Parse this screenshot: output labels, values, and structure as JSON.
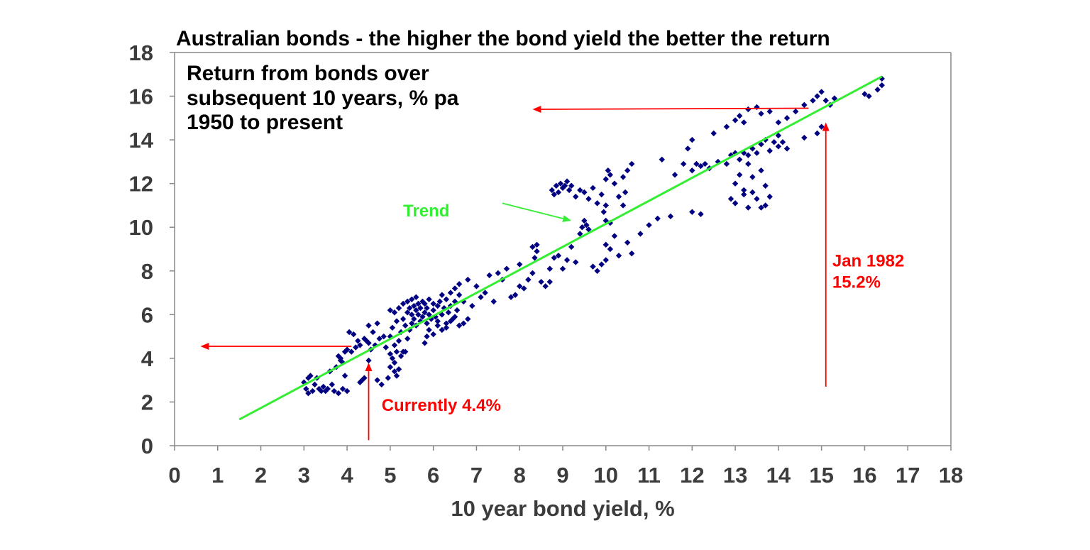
{
  "chart_data": {
    "type": "scatter",
    "title": "Australian bonds - the higher the bond yield the better the return",
    "inner_title": [
      "Return from bonds over",
      "subsequent 10 years, % pa",
      "1950 to present"
    ],
    "xlabel": "10 year bond yield, %",
    "ylabel": "",
    "xlim": [
      0,
      18
    ],
    "ylim": [
      0,
      18
    ],
    "xticks": [
      "0",
      "1",
      "2",
      "3",
      "4",
      "5",
      "6",
      "7",
      "8",
      "9",
      "10",
      "11",
      "12",
      "13",
      "14",
      "15",
      "16",
      "17",
      "18"
    ],
    "yticks": [
      "0",
      "2",
      "4",
      "6",
      "8",
      "10",
      "12",
      "14",
      "16",
      "18"
    ],
    "grid": false,
    "colors": {
      "points": "#000080",
      "trend": "#33ee33",
      "annotation": "#ff0000",
      "axis": "#3c3c3c"
    },
    "trend": {
      "label": "Trend",
      "x": [
        1.5,
        16.4
      ],
      "y": [
        1.2,
        16.9
      ]
    },
    "annotations": [
      {
        "text": [
          "Currently 4.4%"
        ],
        "color": "#ff0000",
        "x": 4.8,
        "y": 1.6
      },
      {
        "text": [
          "Jan 1982",
          "15.2%"
        ],
        "color": "#ff0000",
        "x": 15.25,
        "y": 8.2
      },
      {
        "text": [
          "Trend"
        ],
        "color": "#33ee33",
        "x": 5.3,
        "y": 10.5
      }
    ],
    "arrows": [
      {
        "from": [
          4.5,
          0.25
        ],
        "to": [
          4.5,
          3.8
        ],
        "color": "#ff0000"
      },
      {
        "from": [
          4.1,
          4.55
        ],
        "to": [
          0.6,
          4.55
        ],
        "color": "#ff0000"
      },
      {
        "from": [
          15.1,
          2.7
        ],
        "to": [
          15.1,
          14.8
        ],
        "color": "#ff0000"
      },
      {
        "from": [
          14.7,
          15.45
        ],
        "to": [
          8.3,
          15.4
        ],
        "color": "#ff0000"
      },
      {
        "from": [
          7.6,
          11.1
        ],
        "to": [
          9.2,
          10.3
        ],
        "color": "#33ee33"
      }
    ],
    "series": [
      {
        "points": [
          [
            3.0,
            2.9
          ],
          [
            3.05,
            2.6
          ],
          [
            3.1,
            2.4
          ],
          [
            3.1,
            3.1
          ],
          [
            3.15,
            3.2
          ],
          [
            3.2,
            2.5
          ],
          [
            3.25,
            2.8
          ],
          [
            3.3,
            3.1
          ],
          [
            3.35,
            2.6
          ],
          [
            3.4,
            2.5
          ],
          [
            3.45,
            2.7
          ],
          [
            3.5,
            2.5
          ],
          [
            3.55,
            2.6
          ],
          [
            3.6,
            3.4
          ],
          [
            3.65,
            2.8
          ],
          [
            3.7,
            2.5
          ],
          [
            3.75,
            3.6
          ],
          [
            3.8,
            2.4
          ],
          [
            3.85,
            3.9
          ],
          [
            3.9,
            2.6
          ],
          [
            3.95,
            3.2
          ],
          [
            4.0,
            2.5
          ],
          [
            3.8,
            4.1
          ],
          [
            3.85,
            4.0
          ],
          [
            3.9,
            3.8
          ],
          [
            3.95,
            4.3
          ],
          [
            4.0,
            4.4
          ],
          [
            4.05,
            5.2
          ],
          [
            4.1,
            4.3
          ],
          [
            4.15,
            5.1
          ],
          [
            4.2,
            4.5
          ],
          [
            4.25,
            4.8
          ],
          [
            4.3,
            4.6
          ],
          [
            4.3,
            2.9
          ],
          [
            4.35,
            3.0
          ],
          [
            4.4,
            4.9
          ],
          [
            4.4,
            3.1
          ],
          [
            4.45,
            4.8
          ],
          [
            4.5,
            4.7
          ],
          [
            4.5,
            3.9
          ],
          [
            4.5,
            5.5
          ],
          [
            4.55,
            4.4
          ],
          [
            4.6,
            5.2
          ],
          [
            4.65,
            4.6
          ],
          [
            4.7,
            3.0
          ],
          [
            4.7,
            5.6
          ],
          [
            4.75,
            4.9
          ],
          [
            4.8,
            2.8
          ],
          [
            4.85,
            5.0
          ],
          [
            4.9,
            4.5
          ],
          [
            4.95,
            3.1
          ],
          [
            5.0,
            3.6
          ],
          [
            5.0,
            4.2
          ],
          [
            5.0,
            5.0
          ],
          [
            5.0,
            6.2
          ],
          [
            5.05,
            4.0
          ],
          [
            5.05,
            5.4
          ],
          [
            5.1,
            3.4
          ],
          [
            5.1,
            3.8
          ],
          [
            5.1,
            4.6
          ],
          [
            5.1,
            6.1
          ],
          [
            5.15,
            3.2
          ],
          [
            5.15,
            4.3
          ],
          [
            5.15,
            5.7
          ],
          [
            5.2,
            3.5
          ],
          [
            5.2,
            4.8
          ],
          [
            5.2,
            6.3
          ],
          [
            5.25,
            4.1
          ],
          [
            5.25,
            5.2
          ],
          [
            5.3,
            4.3
          ],
          [
            5.3,
            5.8
          ],
          [
            5.3,
            6.5
          ],
          [
            5.35,
            4.3
          ],
          [
            5.35,
            5.5
          ],
          [
            5.4,
            4.9
          ],
          [
            5.4,
            6.1
          ],
          [
            5.4,
            6.6
          ],
          [
            5.45,
            5.3
          ],
          [
            5.45,
            6.3
          ],
          [
            5.5,
            5.6
          ],
          [
            5.5,
            6.0
          ],
          [
            5.5,
            6.7
          ],
          [
            5.55,
            5.8
          ],
          [
            5.55,
            6.4
          ],
          [
            5.6,
            5.5
          ],
          [
            5.6,
            6.2
          ],
          [
            5.6,
            6.8
          ],
          [
            5.65,
            6.0
          ],
          [
            5.65,
            6.5
          ],
          [
            5.7,
            5.7
          ],
          [
            5.7,
            6.3
          ],
          [
            5.75,
            6.6
          ],
          [
            5.75,
            5.9
          ],
          [
            5.8,
            6.1
          ],
          [
            5.8,
            6.5
          ],
          [
            5.85,
            5.6
          ],
          [
            5.85,
            6.3
          ],
          [
            5.9,
            6.0
          ],
          [
            5.9,
            6.7
          ],
          [
            5.95,
            5.8
          ],
          [
            6.0,
            6.2
          ],
          [
            6.0,
            6.5
          ],
          [
            6.05,
            5.9
          ],
          [
            6.1,
            6.4
          ],
          [
            6.1,
            5.7
          ],
          [
            6.15,
            6.6
          ],
          [
            6.2,
            6.0
          ],
          [
            6.2,
            6.9
          ],
          [
            6.25,
            6.3
          ],
          [
            6.3,
            5.6
          ],
          [
            6.3,
            6.7
          ],
          [
            6.35,
            6.1
          ],
          [
            6.4,
            6.4
          ],
          [
            6.4,
            7.0
          ],
          [
            6.45,
            5.8
          ],
          [
            6.5,
            6.6
          ],
          [
            6.5,
            7.2
          ],
          [
            6.55,
            6.2
          ],
          [
            6.6,
            6.9
          ],
          [
            6.6,
            7.4
          ],
          [
            5.8,
            4.7
          ],
          [
            5.85,
            5.0
          ],
          [
            5.9,
            5.3
          ],
          [
            6.0,
            5.1
          ],
          [
            6.1,
            5.5
          ],
          [
            6.2,
            5.3
          ],
          [
            6.3,
            5.4
          ],
          [
            6.4,
            5.7
          ],
          [
            6.5,
            5.9
          ],
          [
            6.6,
            5.5
          ],
          [
            6.7,
            5.6
          ],
          [
            6.8,
            5.8
          ],
          [
            6.7,
            6.6
          ],
          [
            6.8,
            7.6
          ],
          [
            6.9,
            6.4
          ],
          [
            7.0,
            7.3
          ],
          [
            7.1,
            6.8
          ],
          [
            7.2,
            7.0
          ],
          [
            7.3,
            7.8
          ],
          [
            7.4,
            6.6
          ],
          [
            7.5,
            7.9
          ],
          [
            7.6,
            7.6
          ],
          [
            7.7,
            8.1
          ],
          [
            7.8,
            6.8
          ],
          [
            7.9,
            6.9
          ],
          [
            8.0,
            7.3
          ],
          [
            8.0,
            8.3
          ],
          [
            8.1,
            7.2
          ],
          [
            8.2,
            7.6
          ],
          [
            8.3,
            7.9
          ],
          [
            8.3,
            9.1
          ],
          [
            8.35,
            8.6
          ],
          [
            8.4,
            8.9
          ],
          [
            8.4,
            9.2
          ],
          [
            8.5,
            7.5
          ],
          [
            8.6,
            7.3
          ],
          [
            8.7,
            8.1
          ],
          [
            8.7,
            7.5
          ],
          [
            8.8,
            8.6
          ],
          [
            8.9,
            8.7
          ],
          [
            9.0,
            8.1
          ],
          [
            9.1,
            8.5
          ],
          [
            9.2,
            9.1
          ],
          [
            9.3,
            8.4
          ],
          [
            9.4,
            9.7
          ],
          [
            9.45,
            10.0
          ],
          [
            9.5,
            10.3
          ],
          [
            9.55,
            10.1
          ],
          [
            9.6,
            9.9
          ],
          [
            9.7,
            8.2
          ],
          [
            9.8,
            8.0
          ],
          [
            9.9,
            8.3
          ],
          [
            10.0,
            8.5
          ],
          [
            10.0,
            9.2
          ],
          [
            10.1,
            9.0
          ],
          [
            10.1,
            10.2
          ],
          [
            10.2,
            9.6
          ],
          [
            10.3,
            8.7
          ],
          [
            10.5,
            9.3
          ],
          [
            10.6,
            8.8
          ],
          [
            10.8,
            9.7
          ],
          [
            11.0,
            10.1
          ],
          [
            11.2,
            10.4
          ],
          [
            11.5,
            10.5
          ],
          [
            12.0,
            10.7
          ],
          [
            12.2,
            10.6
          ],
          [
            8.75,
            11.7
          ],
          [
            8.8,
            11.5
          ],
          [
            8.85,
            11.9
          ],
          [
            8.9,
            11.6
          ],
          [
            8.95,
            12.0
          ],
          [
            9.0,
            11.8
          ],
          [
            9.05,
            11.9
          ],
          [
            9.1,
            12.1
          ],
          [
            9.15,
            11.7
          ],
          [
            9.2,
            11.9
          ],
          [
            9.3,
            11.4
          ],
          [
            9.4,
            11.7
          ],
          [
            9.5,
            11.6
          ],
          [
            9.6,
            11.3
          ],
          [
            9.7,
            11.8
          ],
          [
            9.8,
            11.1
          ],
          [
            9.9,
            11.5
          ],
          [
            9.95,
            10.7
          ],
          [
            10.0,
            10.3
          ],
          [
            10.0,
            11.0
          ],
          [
            10.0,
            12.2
          ],
          [
            10.05,
            12.6
          ],
          [
            10.1,
            12.4
          ],
          [
            10.2,
            12.0
          ],
          [
            10.3,
            11.4
          ],
          [
            10.4,
            11.0
          ],
          [
            10.4,
            12.3
          ],
          [
            10.45,
            11.6
          ],
          [
            10.5,
            12.6
          ],
          [
            10.6,
            12.9
          ],
          [
            11.3,
            13.1
          ],
          [
            11.6,
            12.4
          ],
          [
            11.8,
            12.9
          ],
          [
            11.9,
            13.6
          ],
          [
            12.0,
            14.0
          ],
          [
            12.0,
            12.6
          ],
          [
            12.1,
            12.9
          ],
          [
            12.2,
            12.8
          ],
          [
            12.3,
            12.9
          ],
          [
            12.4,
            12.7
          ],
          [
            12.6,
            13.0
          ],
          [
            12.8,
            12.9
          ],
          [
            12.9,
            13.3
          ],
          [
            13.0,
            13.4
          ],
          [
            13.1,
            13.1
          ],
          [
            13.2,
            13.4
          ],
          [
            13.3,
            13.3
          ],
          [
            13.3,
            12.9
          ],
          [
            13.4,
            13.6
          ],
          [
            13.5,
            13.4
          ],
          [
            13.6,
            13.8
          ],
          [
            13.7,
            14.0
          ],
          [
            13.8,
            13.5
          ],
          [
            13.9,
            13.9
          ],
          [
            14.0,
            14.2
          ],
          [
            14.0,
            13.7
          ],
          [
            14.1,
            13.9
          ],
          [
            14.2,
            13.6
          ],
          [
            12.5,
            14.3
          ],
          [
            12.8,
            14.6
          ],
          [
            13.0,
            14.9
          ],
          [
            13.1,
            15.1
          ],
          [
            13.2,
            14.8
          ],
          [
            13.3,
            15.4
          ],
          [
            13.5,
            15.5
          ],
          [
            13.6,
            15.2
          ],
          [
            13.8,
            15.3
          ],
          [
            14.0,
            14.8
          ],
          [
            14.2,
            15.0
          ],
          [
            14.4,
            15.3
          ],
          [
            14.6,
            15.6
          ],
          [
            14.8,
            15.8
          ],
          [
            14.9,
            16.0
          ],
          [
            15.0,
            16.2
          ],
          [
            15.1,
            15.8
          ],
          [
            15.2,
            15.6
          ],
          [
            15.3,
            15.9
          ],
          [
            14.9,
            14.3
          ],
          [
            15.0,
            14.6
          ],
          [
            14.6,
            14.1
          ],
          [
            13.0,
            11.1
          ],
          [
            13.2,
            11.5
          ],
          [
            13.3,
            10.9
          ],
          [
            13.4,
            11.6
          ],
          [
            13.5,
            11.3
          ],
          [
            13.6,
            10.9
          ],
          [
            13.7,
            11.0
          ],
          [
            13.8,
            11.4
          ],
          [
            13.0,
            12.0
          ],
          [
            13.1,
            12.4
          ],
          [
            13.4,
            12.3
          ],
          [
            13.6,
            12.6
          ],
          [
            13.7,
            11.9
          ],
          [
            12.9,
            11.3
          ],
          [
            13.2,
            11.7
          ],
          [
            16.0,
            16.1
          ],
          [
            16.1,
            16.0
          ],
          [
            16.3,
            16.3
          ],
          [
            16.4,
            16.5
          ],
          [
            16.4,
            16.8
          ]
        ]
      }
    ]
  }
}
